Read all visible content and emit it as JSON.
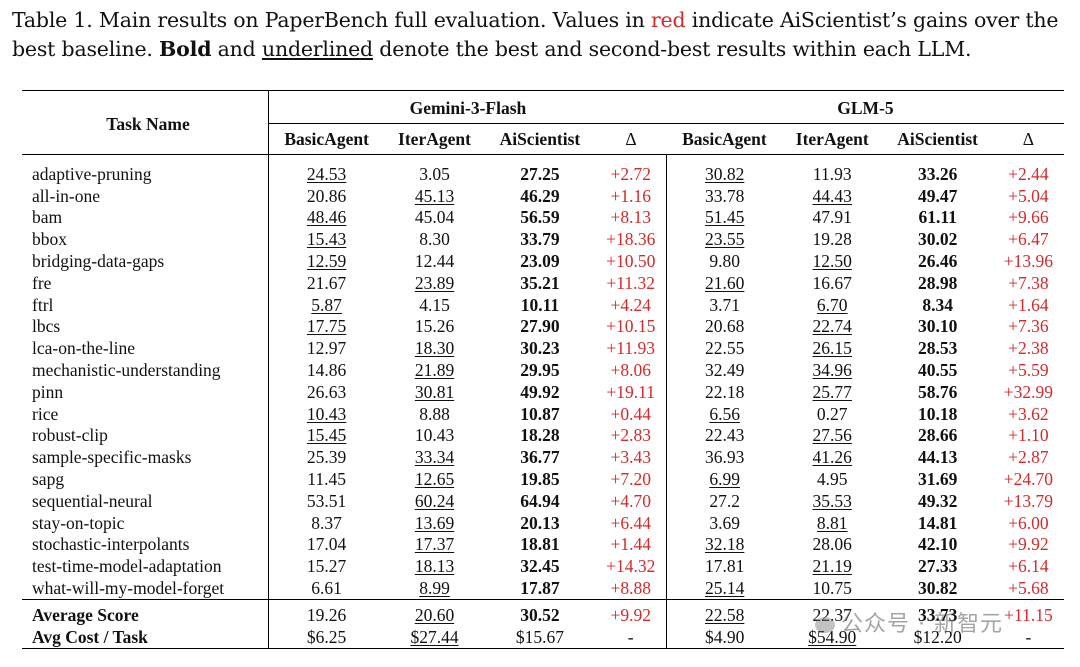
{
  "caption": {
    "p1": "Table 1. Main results on PaperBench full evaluation. Values in ",
    "red_word": "red",
    "p2": " indicate AiScientist’s gains over the best baseline. ",
    "bold_word": "Bold",
    "p3": " and ",
    "underline_word": "underlined",
    "p4": " denote the best and second-best results within each LLM."
  },
  "headers": {
    "task_name": "Task Name",
    "group1": "Gemini-3-Flash",
    "group2": "GLM-5",
    "cols": [
      "BasicAgent",
      "IterAgent",
      "AiScientist",
      "Δ",
      "BasicAgent",
      "IterAgent",
      "AiScientist",
      "Δ"
    ]
  },
  "rows": [
    {
      "task": "adaptive-pruning",
      "v": [
        "24.53",
        "3.05",
        "27.25",
        "+2.72",
        "30.82",
        "11.93",
        "33.26",
        "+2.44"
      ]
    },
    {
      "task": "all-in-one",
      "v": [
        "20.86",
        "45.13",
        "46.29",
        "+1.16",
        "33.78",
        "44.43",
        "49.47",
        "+5.04"
      ]
    },
    {
      "task": "bam",
      "v": [
        "48.46",
        "45.04",
        "56.59",
        "+8.13",
        "51.45",
        "47.91",
        "61.11",
        "+9.66"
      ]
    },
    {
      "task": "bbox",
      "v": [
        "15.43",
        "8.30",
        "33.79",
        "+18.36",
        "23.55",
        "19.28",
        "30.02",
        "+6.47"
      ]
    },
    {
      "task": "bridging-data-gaps",
      "v": [
        "12.59",
        "12.44",
        "23.09",
        "+10.50",
        "9.80",
        "12.50",
        "26.46",
        "+13.96"
      ]
    },
    {
      "task": "fre",
      "v": [
        "21.67",
        "23.89",
        "35.21",
        "+11.32",
        "21.60",
        "16.67",
        "28.98",
        "+7.38"
      ]
    },
    {
      "task": "ftrl",
      "v": [
        "5.87",
        "4.15",
        "10.11",
        "+4.24",
        "3.71",
        "6.70",
        "8.34",
        "+1.64"
      ]
    },
    {
      "task": "lbcs",
      "v": [
        "17.75",
        "15.26",
        "27.90",
        "+10.15",
        "20.68",
        "22.74",
        "30.10",
        "+7.36"
      ]
    },
    {
      "task": "lca-on-the-line",
      "v": [
        "12.97",
        "18.30",
        "30.23",
        "+11.93",
        "22.55",
        "26.15",
        "28.53",
        "+2.38"
      ]
    },
    {
      "task": "mechanistic-understanding",
      "v": [
        "14.86",
        "21.89",
        "29.95",
        "+8.06",
        "32.49",
        "34.96",
        "40.55",
        "+5.59"
      ]
    },
    {
      "task": "pinn",
      "v": [
        "26.63",
        "30.81",
        "49.92",
        "+19.11",
        "22.18",
        "25.77",
        "58.76",
        "+32.99"
      ]
    },
    {
      "task": "rice",
      "v": [
        "10.43",
        "8.88",
        "10.87",
        "+0.44",
        "6.56",
        "0.27",
        "10.18",
        "+3.62"
      ]
    },
    {
      "task": "robust-clip",
      "v": [
        "15.45",
        "10.43",
        "18.28",
        "+2.83",
        "22.43",
        "27.56",
        "28.66",
        "+1.10"
      ]
    },
    {
      "task": "sample-specific-masks",
      "v": [
        "25.39",
        "33.34",
        "36.77",
        "+3.43",
        "36.93",
        "41.26",
        "44.13",
        "+2.87"
      ]
    },
    {
      "task": "sapg",
      "v": [
        "11.45",
        "12.65",
        "19.85",
        "+7.20",
        "6.99",
        "4.95",
        "31.69",
        "+24.70"
      ]
    },
    {
      "task": "sequential-neural",
      "v": [
        "53.51",
        "60.24",
        "64.94",
        "+4.70",
        "27.2",
        "35.53",
        "49.32",
        "+13.79"
      ]
    },
    {
      "task": "stay-on-topic",
      "v": [
        "8.37",
        "13.69",
        "20.13",
        "+6.44",
        "3.69",
        "8.81",
        "14.81",
        "+6.00"
      ]
    },
    {
      "task": "stochastic-interpolants",
      "v": [
        "17.04",
        "17.37",
        "18.81",
        "+1.44",
        "32.18",
        "28.06",
        "42.10",
        "+9.92"
      ]
    },
    {
      "task": "test-time-model-adaptation",
      "v": [
        "15.27",
        "18.13",
        "32.45",
        "+14.32",
        "17.81",
        "21.19",
        "27.33",
        "+6.14"
      ]
    },
    {
      "task": "what-will-my-model-forget",
      "v": [
        "6.61",
        "8.99",
        "17.87",
        "+8.88",
        "25.14",
        "10.75",
        "30.82",
        "+5.68"
      ]
    }
  ],
  "summary": [
    {
      "task": "Average Score",
      "v": [
        "19.26",
        "20.60",
        "30.52",
        "+9.92",
        "22.58",
        "22.37",
        "33.73",
        "+11.15"
      ]
    },
    {
      "task": "Avg Cost / Task",
      "v": [
        "$6.25",
        "$27.44",
        "$15.67",
        "-",
        "$4.90",
        "$54.90",
        "$12.20",
        "-"
      ]
    }
  ],
  "watermark": "公众号 · 新智元",
  "colors": {
    "gain_red": "#d42a2a"
  }
}
